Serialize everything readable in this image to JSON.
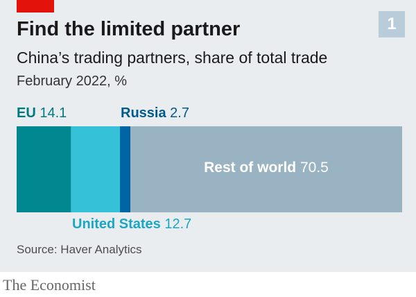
{
  "header": {
    "badge": "1",
    "title": "Find the limited partner",
    "subtitle": "China’s trading partners, share of total trade",
    "period": "February 2022, %"
  },
  "labels": {
    "eu": {
      "name": "EU",
      "value": "14.1"
    },
    "russia": {
      "name": "Russia",
      "value": "2.7"
    },
    "us": {
      "name": "United States",
      "value": "12.7"
    },
    "rest": {
      "name": "Rest of world",
      "value": "70.5"
    }
  },
  "chart_data": {
    "type": "bar",
    "stacked": true,
    "orientation": "horizontal",
    "title": "Find the limited partner",
    "subtitle": "China’s trading partners, share of total trade",
    "unit": "February 2022, %",
    "series": [
      {
        "name": "EU",
        "value": 14.1,
        "color": "#00878f"
      },
      {
        "name": "United States",
        "value": 12.7,
        "color": "#35c2d8"
      },
      {
        "name": "Russia",
        "value": 2.7,
        "color": "#0065a2"
      },
      {
        "name": "Rest of world",
        "value": 70.5,
        "color": "#9ab3c3"
      }
    ]
  },
  "footer": {
    "source": "Source: Haver Analytics",
    "brand": "The Economist"
  }
}
